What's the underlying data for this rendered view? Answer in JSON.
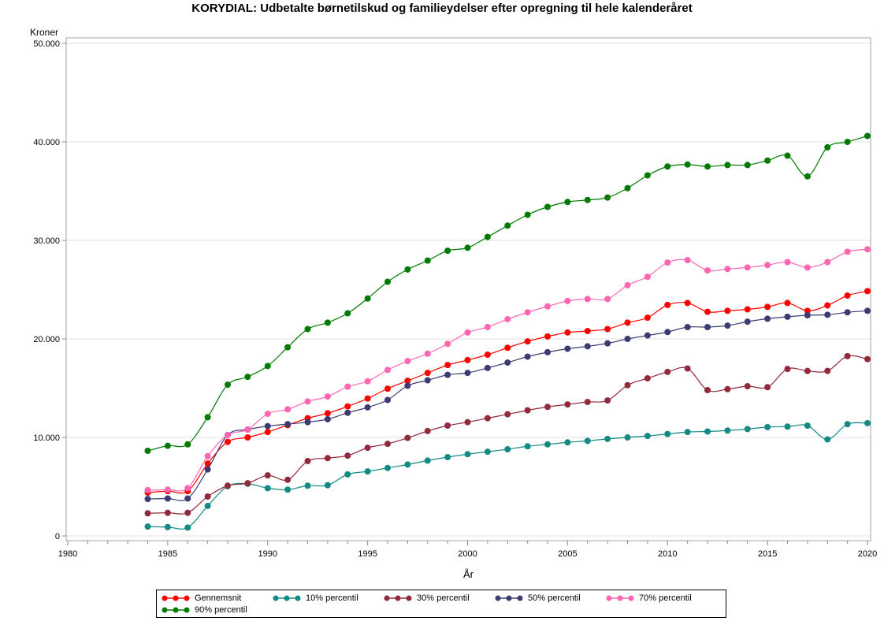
{
  "chart_data": {
    "type": "line",
    "title": "KORYDIAL:  Udbetalte børnetilskud og familieydelser efter opregning til hele kalenderåret",
    "xlabel": "År",
    "ylabel": "Kroner",
    "xlim": [
      1980,
      2020
    ],
    "ylim": [
      0,
      50000
    ],
    "xticks": [
      "1980",
      "1985",
      "1990",
      "1995",
      "2000",
      "2005",
      "2010",
      "2015",
      "2020"
    ],
    "yticks": [
      "0",
      "10.000",
      "20.000",
      "30.000",
      "40.000",
      "50.000"
    ],
    "grid": true,
    "legend_position": "bottom",
    "x": [
      1984,
      1985,
      1986,
      1987,
      1988,
      1989,
      1990,
      1991,
      1992,
      1993,
      1994,
      1995,
      1996,
      1997,
      1998,
      1999,
      2000,
      2001,
      2002,
      2003,
      2004,
      2005,
      2006,
      2007,
      2008,
      2009,
      2010,
      2011,
      2012,
      2013,
      2014,
      2015,
      2016,
      2017,
      2018,
      2019,
      2020
    ],
    "series": [
      {
        "name": "Gennemsnit",
        "color": "#ff0000",
        "values": [
          4400,
          4550,
          4550,
          7350,
          9550,
          10000,
          10550,
          11250,
          11950,
          12450,
          13150,
          13950,
          14950,
          15750,
          16550,
          17350,
          17850,
          18400,
          19100,
          19750,
          20250,
          20650,
          20800,
          21000,
          21650,
          22150,
          23450,
          23650,
          22750,
          22850,
          23000,
          23250,
          23650,
          22850,
          23400,
          24400,
          24850
        ]
      },
      {
        "name": "10% percentil",
        "color": "#138a84",
        "values": [
          950,
          900,
          850,
          3050,
          5050,
          5300,
          4850,
          4700,
          5100,
          5150,
          6250,
          6550,
          6900,
          7250,
          7650,
          8000,
          8300,
          8550,
          8800,
          9100,
          9300,
          9500,
          9650,
          9850,
          10000,
          10150,
          10350,
          10550,
          10600,
          10700,
          10850,
          11050,
          11100,
          11200,
          9800,
          11350,
          11450
        ]
      },
      {
        "name": "30% percentil",
        "color": "#922a3e",
        "values": [
          2300,
          2350,
          2350,
          4000,
          5100,
          5350,
          6150,
          5700,
          7600,
          7900,
          8150,
          8950,
          9350,
          9950,
          10650,
          11200,
          11550,
          11950,
          12350,
          12750,
          13100,
          13350,
          13600,
          13750,
          15300,
          16000,
          16650,
          17000,
          14800,
          14900,
          15200,
          15100,
          16950,
          16750,
          16750,
          18250,
          17950
        ]
      },
      {
        "name": "50% percentil",
        "color": "#3c3c72",
        "values": [
          3750,
          3800,
          3800,
          6750,
          10250,
          10800,
          11150,
          11350,
          11550,
          11850,
          12500,
          13050,
          13800,
          15250,
          15800,
          16350,
          16550,
          17050,
          17600,
          18200,
          18650,
          19000,
          19250,
          19550,
          20000,
          20350,
          20700,
          21200,
          21200,
          21350,
          21750,
          22050,
          22250,
          22400,
          22450,
          22700,
          22850
        ]
      },
      {
        "name": "70% percentil",
        "color": "#ff66b2",
        "values": [
          4650,
          4700,
          4850,
          8100,
          10250,
          10800,
          12400,
          12850,
          13650,
          14150,
          15150,
          15700,
          16850,
          17750,
          18500,
          19500,
          20650,
          21200,
          22000,
          22700,
          23300,
          23850,
          24050,
          24050,
          25450,
          26300,
          27750,
          28000,
          26950,
          27100,
          27250,
          27500,
          27800,
          27250,
          27800,
          28850,
          29100
        ]
      },
      {
        "name": "90% percentil",
        "color": "#007a00",
        "values": [
          8640,
          9150,
          9300,
          12050,
          15350,
          16150,
          17250,
          19150,
          21000,
          21650,
          22600,
          24100,
          25800,
          27050,
          27950,
          28950,
          29250,
          30350,
          31500,
          32600,
          33400,
          33900,
          34100,
          34350,
          35300,
          36600,
          37500,
          37700,
          37500,
          37650,
          37650,
          38100,
          38600,
          36500,
          39450,
          40000,
          40600
        ]
      }
    ]
  }
}
